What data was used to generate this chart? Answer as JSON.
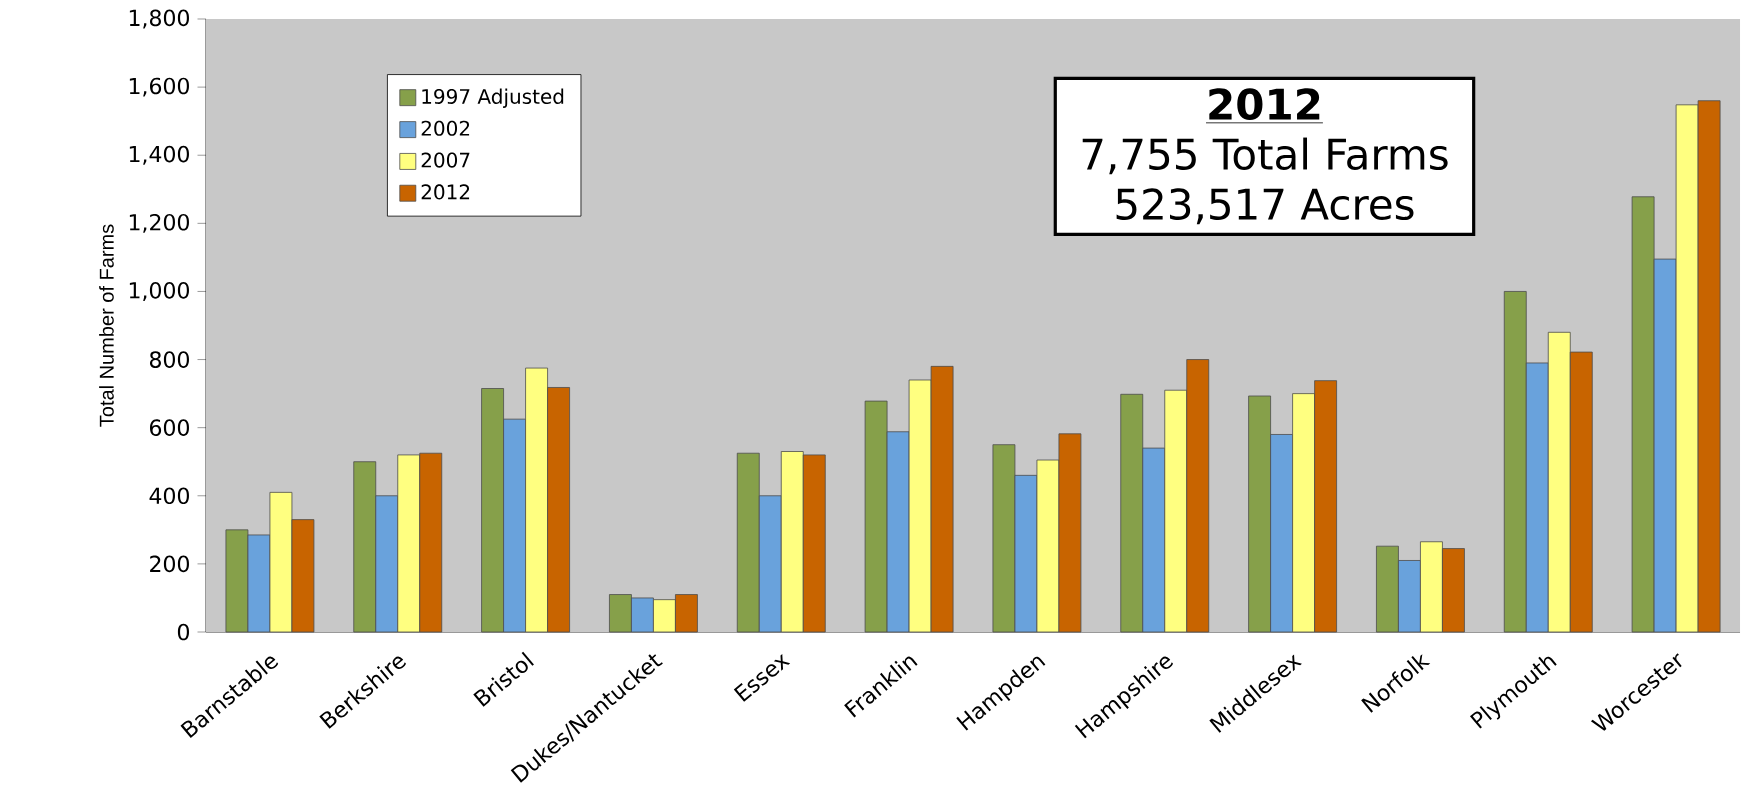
{
  "chart_data": {
    "type": "bar",
    "ylabel": "Total Number of Farms",
    "categories": [
      "Barnstable",
      "Berkshire",
      "Bristol",
      "Dukes/Nantucket",
      "Essex",
      "Franklin",
      "Hampden",
      "Hampshire",
      "Middlesex",
      "Norfolk",
      "Plymouth",
      "Worcester"
    ],
    "series": [
      {
        "name": "1997 Adjusted",
        "color": "#86a04a",
        "values": [
          300,
          500,
          715,
          110,
          525,
          678,
          550,
          698,
          693,
          252,
          1000,
          1278
        ]
      },
      {
        "name": "2002",
        "color": "#69a2dc",
        "values": [
          285,
          400,
          625,
          100,
          400,
          588,
          460,
          540,
          580,
          210,
          790,
          1095
        ]
      },
      {
        "name": "2007",
        "color": "#ffff80",
        "values": [
          410,
          520,
          775,
          95,
          530,
          740,
          505,
          710,
          700,
          265,
          880,
          1548
        ]
      },
      {
        "name": "2012",
        "color": "#c86400",
        "values": [
          330,
          525,
          718,
          110,
          520,
          780,
          582,
          800,
          738,
          245,
          822,
          1560
        ]
      }
    ],
    "ylim": [
      0,
      1800
    ],
    "yticks": [
      0,
      200,
      400,
      600,
      800,
      {
        "value": 1000,
        "label": "1,000"
      },
      {
        "value": 1200,
        "label": "1,200"
      },
      {
        "value": 1400,
        "label": "1,400"
      },
      {
        "value": 1600,
        "label": "1,600"
      },
      {
        "value": 1800,
        "label": "1,800"
      }
    ],
    "annotations": [
      "2012",
      "7,755 Total Farms",
      "523,517 Acres"
    ],
    "legend": "top left",
    "grid": false
  }
}
